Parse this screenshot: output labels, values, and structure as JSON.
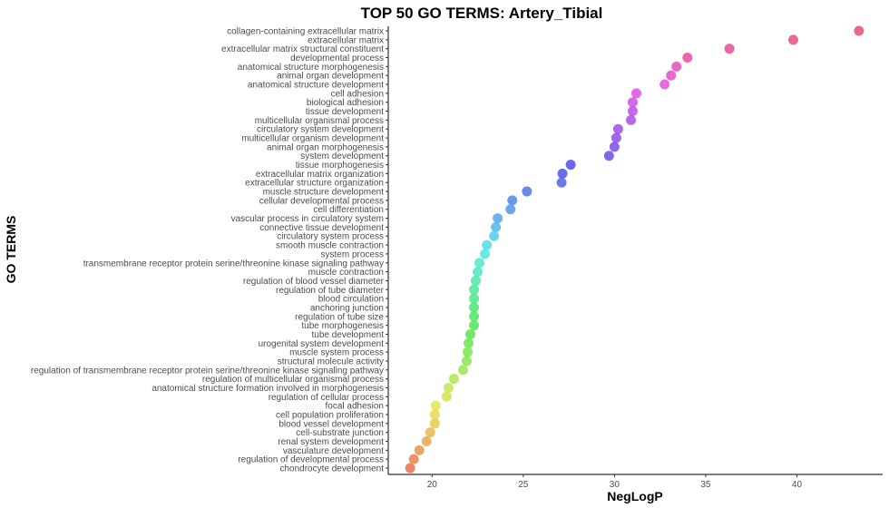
{
  "chart_data": {
    "type": "scatter",
    "title": "TOP 50 GO TERMS: Artery_Tibial",
    "xlabel": "NegLogP",
    "ylabel": "GO TERMS",
    "xlim": [
      17.6,
      44.7
    ],
    "xticks": [
      20,
      25,
      30,
      35,
      40
    ],
    "grid": false,
    "legend": "none",
    "color_by": "category (hue palette)",
    "categories": [
      "collagen-containing extracellular matrix",
      "extracellular matrix",
      "extracellular matrix structural constituent",
      "developmental process",
      "anatomical structure morphogenesis",
      "animal organ development",
      "anatomical structure development",
      "cell adhesion",
      "biological adhesion",
      "tissue development",
      "multicellular organismal process",
      "circulatory system development",
      "multicellular organism development",
      "animal organ morphogenesis",
      "system development",
      "tissue morphogenesis",
      "extracellular matrix organization",
      "extracellular structure organization",
      "muscle structure development",
      "cellular developmental process",
      "cell differentiation",
      "vascular process in circulatory system",
      "connective tissue development",
      "circulatory system process",
      "smooth muscle contraction",
      "system process",
      "transmembrane receptor protein serine/threonine kinase signaling pathway",
      "muscle contraction",
      "regulation of blood vessel diameter",
      "regulation of tube diameter",
      "blood circulation",
      "anchoring junction",
      "regulation of tube size",
      "tube morphogenesis",
      "tube development",
      "urogenital system development",
      "muscle system process",
      "structural molecule activity",
      "regulation of transmembrane receptor protein serine/threonine kinase signaling pathway",
      "regulation of multicellular organismal process",
      "anatomical structure formation involved in morphogenesis",
      "regulation of cellular process",
      "focal adhesion",
      "cell population proliferation",
      "blood vessel development",
      "cell-substrate junction",
      "renal system development",
      "vasculature development",
      "regulation of developmental process",
      "chondrocyte development"
    ],
    "values": [
      43.4,
      39.8,
      36.3,
      34.0,
      33.4,
      33.1,
      32.75,
      31.2,
      31.0,
      31.0,
      30.9,
      30.2,
      30.1,
      30.0,
      29.7,
      27.6,
      27.15,
      27.1,
      25.2,
      24.4,
      24.3,
      23.6,
      23.5,
      23.4,
      23.0,
      22.9,
      22.6,
      22.5,
      22.4,
      22.3,
      22.3,
      22.3,
      22.3,
      22.3,
      22.1,
      22.0,
      21.95,
      21.9,
      21.7,
      21.2,
      20.9,
      20.8,
      20.2,
      20.15,
      20.15,
      19.9,
      19.7,
      19.3,
      19.0,
      18.8
    ]
  }
}
